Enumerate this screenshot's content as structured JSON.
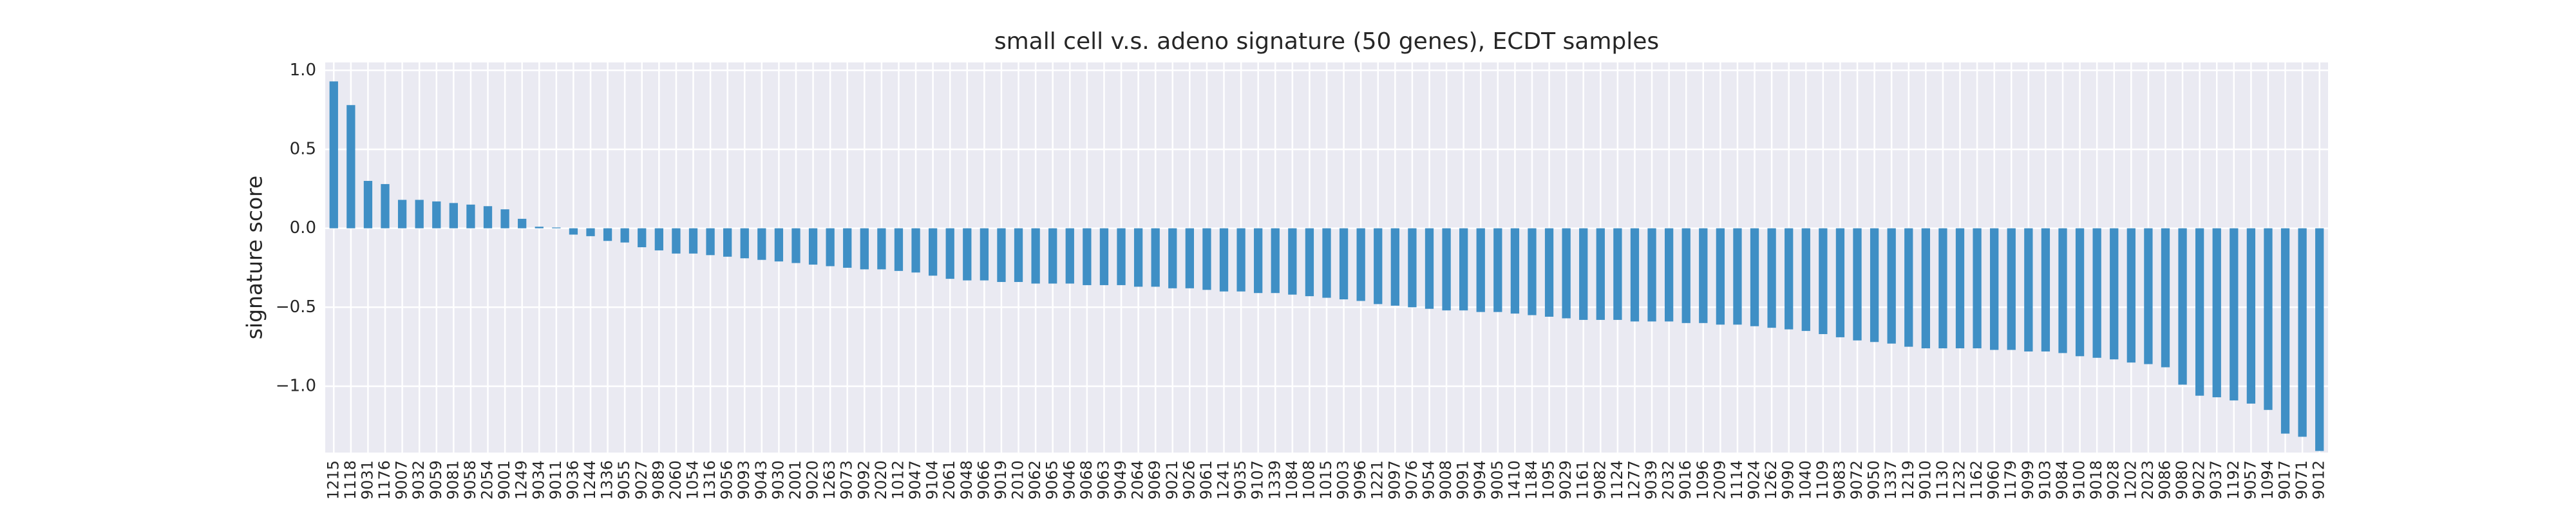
{
  "chart_data": {
    "type": "bar",
    "title": "small cell v.s. adeno signature (50 genes), ECDT samples",
    "ylabel": "signature score",
    "color": "#3f8fc5",
    "grid": true,
    "categories": [
      "1215",
      "1118",
      "9031",
      "1176",
      "9007",
      "9032",
      "9059",
      "9081",
      "9058",
      "2054",
      "9001",
      "1249",
      "9034",
      "9011",
      "9036",
      "1244",
      "1336",
      "9055",
      "9027",
      "9089",
      "2060",
      "1054",
      "1316",
      "9056",
      "9093",
      "9043",
      "9030",
      "2001",
      "9020",
      "1263",
      "9073",
      "9092",
      "2020",
      "1012",
      "9047",
      "9104",
      "2061",
      "9048",
      "9066",
      "9019",
      "2010",
      "9062",
      "9065",
      "9046",
      "9068",
      "9063",
      "9049",
      "2064",
      "9069",
      "9021",
      "9026",
      "9061",
      "1241",
      "9035",
      "9107",
      "1339",
      "1084",
      "1008",
      "1015",
      "9003",
      "9096",
      "1221",
      "9097",
      "9076",
      "9054",
      "9008",
      "9091",
      "9094",
      "9005",
      "1410",
      "1184",
      "1095",
      "9029",
      "1161",
      "9082",
      "1124",
      "1277",
      "9039",
      "2032",
      "9016",
      "1096",
      "2009",
      "1114",
      "9024",
      "1262",
      "9090",
      "1040",
      "1109",
      "9083",
      "9072",
      "9050",
      "1337",
      "1219",
      "9010",
      "1130",
      "1232",
      "1162",
      "9060",
      "1179",
      "9099",
      "9103",
      "9084",
      "9100",
      "9018",
      "9028",
      "1202",
      "2023",
      "9086",
      "9080",
      "9022",
      "9037",
      "1192",
      "9057",
      "1094",
      "9017",
      "9071",
      "9012"
    ],
    "values": [
      0.93,
      0.78,
      0.3,
      0.28,
      0.18,
      0.18,
      0.17,
      0.16,
      0.15,
      0.14,
      0.12,
      0.06,
      0.01,
      0.005,
      -0.04,
      -0.05,
      -0.08,
      -0.09,
      -0.12,
      -0.14,
      -0.16,
      -0.16,
      -0.17,
      -0.18,
      -0.19,
      -0.2,
      -0.21,
      -0.22,
      -0.23,
      -0.24,
      -0.25,
      -0.26,
      -0.26,
      -0.27,
      -0.28,
      -0.3,
      -0.32,
      -0.33,
      -0.33,
      -0.34,
      -0.34,
      -0.35,
      -0.35,
      -0.35,
      -0.36,
      -0.36,
      -0.36,
      -0.37,
      -0.37,
      -0.38,
      -0.38,
      -0.39,
      -0.4,
      -0.4,
      -0.41,
      -0.41,
      -0.42,
      -0.43,
      -0.44,
      -0.45,
      -0.46,
      -0.48,
      -0.49,
      -0.5,
      -0.51,
      -0.52,
      -0.52,
      -0.53,
      -0.53,
      -0.54,
      -0.55,
      -0.56,
      -0.57,
      -0.58,
      -0.58,
      -0.58,
      -0.59,
      -0.59,
      -0.59,
      -0.6,
      -0.6,
      -0.61,
      -0.61,
      -0.62,
      -0.63,
      -0.64,
      -0.65,
      -0.67,
      -0.69,
      -0.71,
      -0.72,
      -0.73,
      -0.75,
      -0.76,
      -0.76,
      -0.76,
      -0.76,
      -0.77,
      -0.77,
      -0.78,
      -0.78,
      -0.79,
      -0.81,
      -0.82,
      -0.83,
      -0.85,
      -0.86,
      -0.88,
      -0.99,
      -1.06,
      -1.07,
      -1.09,
      -1.11,
      -1.15,
      -1.3,
      -1.32,
      -1.41
    ],
    "ylim": [
      -1.42,
      1.05
    ],
    "yticks": [
      {
        "value": -1.0,
        "label": "−1.0"
      },
      {
        "value": -0.5,
        "label": "−0.5"
      },
      {
        "value": 0.0,
        "label": "0.0"
      },
      {
        "value": 0.5,
        "label": "0.5"
      },
      {
        "value": 1.0,
        "label": "1.0"
      }
    ]
  }
}
